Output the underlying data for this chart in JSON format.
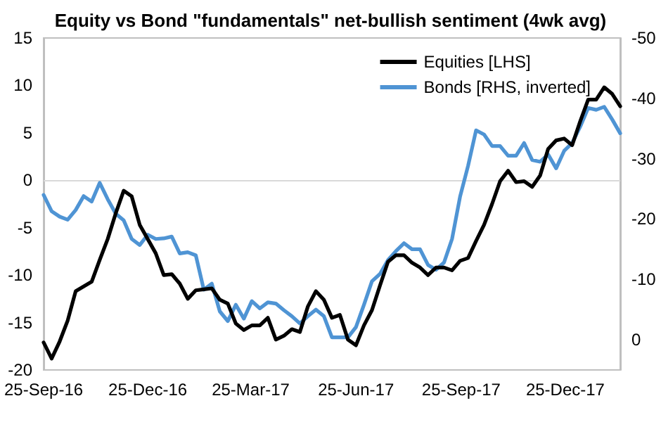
{
  "chart_data": {
    "type": "line",
    "title": "Equity vs Bond \"fundamentals\" net-bullish sentiment (4wk avg)",
    "x": [
      "2016-09-25",
      "2016-10-02",
      "2016-10-09",
      "2016-10-16",
      "2016-10-23",
      "2016-10-30",
      "2016-11-06",
      "2016-11-13",
      "2016-11-20",
      "2016-11-27",
      "2016-12-04",
      "2016-12-11",
      "2016-12-18",
      "2016-12-25",
      "2017-01-01",
      "2017-01-08",
      "2017-01-15",
      "2017-01-22",
      "2017-01-29",
      "2017-02-05",
      "2017-02-12",
      "2017-02-19",
      "2017-02-26",
      "2017-03-05",
      "2017-03-12",
      "2017-03-19",
      "2017-03-26",
      "2017-04-02",
      "2017-04-09",
      "2017-04-16",
      "2017-04-23",
      "2017-04-30",
      "2017-05-07",
      "2017-05-14",
      "2017-05-21",
      "2017-05-28",
      "2017-06-04",
      "2017-06-11",
      "2017-06-18",
      "2017-06-25",
      "2017-07-02",
      "2017-07-09",
      "2017-07-16",
      "2017-07-23",
      "2017-07-30",
      "2017-08-06",
      "2017-08-13",
      "2017-08-20",
      "2017-08-27",
      "2017-09-03",
      "2017-09-10",
      "2017-09-17",
      "2017-09-24",
      "2017-10-01",
      "2017-10-08",
      "2017-10-15",
      "2017-10-22",
      "2017-10-29",
      "2017-11-05",
      "2017-11-12",
      "2017-11-19",
      "2017-11-26",
      "2017-12-03",
      "2017-12-10",
      "2017-12-17",
      "2017-12-24",
      "2017-12-31",
      "2018-01-07",
      "2018-01-14",
      "2018-01-21",
      "2018-01-28",
      "2018-02-04",
      "2018-02-11"
    ],
    "series": [
      {
        "name": "Equities [LHS]",
        "color": "#000000",
        "values": [
          -17.1,
          -18.8,
          -17.0,
          -14.8,
          -11.7,
          -11.2,
          -10.7,
          -8.4,
          -6.2,
          -3.5,
          -1.1,
          -1.7,
          -4.7,
          -6.2,
          -7.7,
          -10.0,
          -9.9,
          -10.9,
          -12.5,
          -11.6,
          -11.5,
          -11.4,
          -12.6,
          -13.0,
          -15.1,
          -15.8,
          -15.3,
          -15.3,
          -14.5,
          -16.8,
          -16.4,
          -15.7,
          -16.0,
          -13.3,
          -11.7,
          -12.6,
          -14.5,
          -14.2,
          -16.8,
          -17.4,
          -15.3,
          -13.7,
          -11.1,
          -8.6,
          -7.9,
          -7.9,
          -8.7,
          -9.2,
          -10.0,
          -9.2,
          -9.2,
          -9.5,
          -8.5,
          -8.2,
          -6.4,
          -4.7,
          -2.5,
          -0.1,
          1.0,
          -0.2,
          -0.1,
          -0.7,
          0.5,
          3.3,
          4.2,
          4.4,
          3.7,
          6.2,
          8.5,
          8.5,
          9.8,
          9.1,
          7.8
        ]
      },
      {
        "name": "Bonds [RHS, inverted]",
        "color": "#4f94d4",
        "axis": "y2",
        "values": [
          -24.0,
          -21.3,
          -20.4,
          -19.9,
          -21.5,
          -23.8,
          -22.9,
          -26.0,
          -23.3,
          -20.9,
          -19.8,
          -16.7,
          -15.7,
          -17.4,
          -16.7,
          -16.8,
          -17.1,
          -14.3,
          -14.5,
          -14.0,
          -8.3,
          -9.3,
          -4.7,
          -3.1,
          -5.8,
          -3.5,
          -6.4,
          -5.2,
          -6.2,
          -6.0,
          -4.9,
          -3.9,
          -2.7,
          -3.9,
          -5.0,
          -3.9,
          -0.4,
          -0.4,
          -0.4,
          -2.1,
          -5.8,
          -9.7,
          -10.9,
          -13.2,
          -14.7,
          -16.0,
          -15.0,
          -15.0,
          -12.4,
          -11.6,
          -12.8,
          -16.7,
          -23.7,
          -28.8,
          -34.7,
          -34.0,
          -32.1,
          -32.1,
          -30.5,
          -30.5,
          -32.6,
          -29.8,
          -29.5,
          -30.7,
          -28.4,
          -31.3,
          -32.6,
          -35.3,
          -38.4,
          -38.1,
          -38.6,
          -36.5,
          -34.2
        ]
      }
    ],
    "xlim": [
      "2016-09-25",
      "2018-02-11"
    ],
    "xticks": [
      {
        "value": "2016-09-25",
        "label": "25-Sep-16"
      },
      {
        "value": "2016-12-25",
        "label": "25-Dec-16"
      },
      {
        "value": "2017-03-25",
        "label": "25-Mar-17"
      },
      {
        "value": "2017-06-25",
        "label": "25-Jun-17"
      },
      {
        "value": "2017-09-25",
        "label": "25-Sep-17"
      },
      {
        "value": "2017-12-25",
        "label": "25-Dec-17"
      }
    ],
    "ylim": [
      -20,
      15
    ],
    "yticks": [
      -20,
      -15,
      -10,
      -5,
      0,
      5,
      10,
      15
    ],
    "y2lim": [
      5,
      -50
    ],
    "y2ticks": [
      -50,
      -40,
      -30,
      -20,
      -10,
      0
    ],
    "ref_lines": [
      {
        "axis": "y",
        "value": 0,
        "color": "#d9d9d9"
      }
    ],
    "grid": false,
    "legend": "top right",
    "marker": "none",
    "line_style": "solid"
  }
}
